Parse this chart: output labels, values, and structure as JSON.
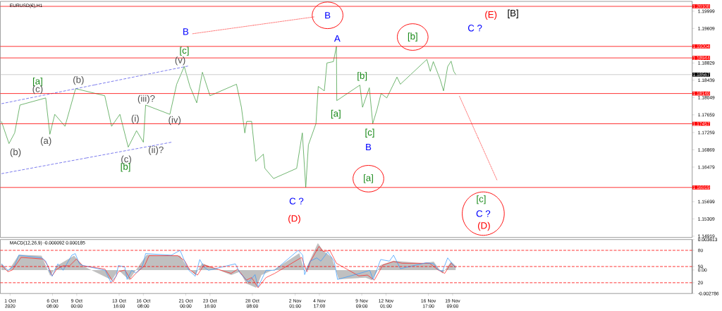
{
  "chart_data": [
    {
      "type": "line",
      "title": "EURUSD(€),H1",
      "xlim": [
        "2020-09-30T14:00",
        "2020-12-15T18:00"
      ],
      "ylim": [
        1.1489,
        1.2022
      ],
      "yticks": [
        1.14919,
        1.15309,
        1.15699,
        1.16479,
        1.16869,
        1.17259,
        1.17659,
        1.18049,
        1.18439,
        1.18829,
        1.19609,
        1.19999
      ],
      "tick_labels": "y",
      "series": [
        {
          "color": "#3c9a3c",
          "x": [
            "2020-09-30T17:00",
            "2020-10-01T13:00",
            "2020-10-02T04:00",
            "2020-10-02T18:00",
            "2020-10-05T14:00",
            "2020-10-06T01:00",
            "2020-10-06T14:00",
            "2020-10-07T17:00",
            "2020-10-08T21:00",
            "2020-10-12T02:00",
            "2020-10-12T20:00",
            "2020-10-13T18:00",
            "2020-10-14T16:00",
            "2020-10-15T14:00",
            "2020-10-16T08:00",
            "2020-10-16T14:00",
            "2020-10-19T06:00",
            "2020-10-20T00:00",
            "2020-10-20T20:00",
            "2020-10-21T11:00",
            "2020-10-22T05:00",
            "2020-10-22T20:00",
            "2020-10-23T16:00",
            "2020-10-26T14:00",
            "2020-10-27T03:00",
            "2020-10-27T12:00",
            "2020-10-27T17:00",
            "2020-10-28T06:00",
            "2020-10-28T17:00",
            "2020-10-29T13:00",
            "2020-10-29T17:00",
            "2020-10-30T16:00",
            "2020-11-02T05:00",
            "2020-11-02T20:00",
            "2020-11-03T05:00",
            "2020-11-03T12:00",
            "2020-11-04T08:00",
            "2020-11-04T14:00",
            "2020-11-05T06:00",
            "2020-11-05T13:00",
            "2020-11-06T06:00",
            "2020-11-06T14:00",
            "2020-11-06T15:00",
            "2020-11-09T04:00",
            "2020-11-09T11:00",
            "2020-11-10T05:00",
            "2020-11-10T14:00",
            "2020-11-11T01:00",
            "2020-11-11T12:00",
            "2020-11-12T03:00",
            "2020-11-13T06:00",
            "2020-11-13T15:00",
            "2020-11-16T13:00",
            "2020-11-16T22:00",
            "2020-11-17T06:00",
            "2020-11-18T00:00",
            "2020-11-18T09:00",
            "2020-11-18T20:00",
            "2020-11-19T05:00",
            "2020-11-19T12:00",
            "2020-11-19T18:00"
          ],
          "values": [
            1.1751,
            1.1701,
            1.1725,
            1.1788,
            1.1804,
            1.1722,
            1.1767,
            1.174,
            1.1825,
            1.1809,
            1.174,
            1.1767,
            1.1693,
            1.173,
            1.1704,
            1.1788,
            1.1767,
            1.1835,
            1.1875,
            1.183,
            1.1793,
            1.1862,
            1.1809,
            1.1835,
            1.1783,
            1.1725,
            1.1751,
            1.1751,
            1.1661,
            1.1677,
            1.1645,
            1.1622,
            1.1645,
            1.1725,
            1.1602,
            1.1698,
            1.1746,
            1.183,
            1.182,
            1.1883,
            1.1886,
            1.192,
            1.1798,
            1.1833,
            1.1783,
            1.1827,
            1.1746,
            1.1777,
            1.1814,
            1.1804,
            1.1851,
            1.1835,
            1.1891,
            1.1864,
            1.1886,
            1.1846,
            1.182,
            1.1875,
            1.1887,
            1.1864,
            1.1856
          ]
        },
        {
          "color": "#4a4ae6",
          "line_style": "dashed",
          "x": [
            "2020-09-30T17:00",
            "2020-10-21T06:00"
          ],
          "values": [
            1.1791,
            1.1876
          ]
        },
        {
          "color": "#4a4ae6",
          "line_style": "dashed",
          "x": [
            "2020-09-30T17:00",
            "2020-10-19T10:00"
          ],
          "values": [
            1.1633,
            1.1704
          ]
        },
        {
          "color": "#ff5050",
          "line_style": "dotted",
          "x": [
            "2020-10-21T18:00",
            "2020-11-04T03:00"
          ],
          "values": [
            1.1949,
            1.1987
          ]
        },
        {
          "color": "#ff5050",
          "line_style": "dotted",
          "x": [
            "2020-11-20T03:00",
            "2020-11-24T06:00"
          ],
          "values": [
            1.1808,
            1.1619
          ]
        }
      ],
      "ref_lines": [
        {
          "axis": "y",
          "value": 1.20108,
          "label": "1.20108",
          "color": "#ff0000"
        },
        {
          "axis": "y",
          "value": 1.19204,
          "label": "1.19204",
          "color": "#ff0000"
        },
        {
          "axis": "y",
          "value": 1.18944,
          "label": "1.18944",
          "color": "#ff0000"
        },
        {
          "axis": "y",
          "value": 1.18567,
          "label": "1.18567",
          "color": "#c0c0c0"
        },
        {
          "axis": "y",
          "value": 1.1814,
          "label": "1.18140",
          "color": "#ff0000"
        },
        {
          "axis": "y",
          "value": 1.17457,
          "label": "1.17457",
          "color": "#ff0000"
        },
        {
          "axis": "y",
          "value": 1.16019,
          "label": "1.16019",
          "color": "#ff0000"
        }
      ],
      "annotations": [
        "[a]",
        "(c)",
        "(b)",
        "(a)",
        "(b)",
        "(iii)?",
        "(i)",
        "(iv)",
        "(ii)?",
        "(c)",
        "[b]",
        "(v)",
        "[c]",
        "B",
        "B",
        "A",
        "[b]",
        "[a]",
        "[c]",
        "B",
        "[a]",
        "C ?",
        "(D)",
        "[b]",
        "C ?",
        "(E)",
        "[B]",
        "[c]",
        "C ?",
        "(D)"
      ]
    },
    {
      "type": "line",
      "title": "MACD(12,26,9) -0.000092 0.000185",
      "xlim": [
        "2020-09-30T14:00",
        "2020-12-15T18:00"
      ],
      "xticks": [
        {
          "value": "2020-10-01T16:00",
          "label": "1 Oct 2020"
        },
        {
          "value": "2020-10-06T08:00",
          "label": "6 Oct 08:00"
        },
        {
          "value": "2020-10-09T00:00",
          "label": "9 Oct 00:00"
        },
        {
          "value": "2020-10-13T16:00",
          "label": "13 Oct 16:00"
        },
        {
          "value": "2020-10-16T08:00",
          "label": "16 Oct 08:00"
        },
        {
          "value": "2020-10-21T00:00",
          "label": "21 Oct 00:00"
        },
        {
          "value": "2020-10-23T16:00",
          "label": "23 Oct 16:00"
        },
        {
          "value": "2020-10-28T08:00",
          "label": "28 Oct 08:00"
        },
        {
          "value": "2020-11-02T01:00",
          "label": "2 Nov 01:00"
        },
        {
          "value": "2020-11-04T17:00",
          "label": "4 Nov 17:00"
        },
        {
          "value": "2020-11-09T09:00",
          "label": "9 Nov 09:00"
        },
        {
          "value": "2020-11-12T01:00",
          "label": "12 Nov 01:00"
        },
        {
          "value": "2020-11-16T17:00",
          "label": "16 Nov 17:00"
        },
        {
          "value": "2020-11-19T09:00",
          "label": "19 Nov 09:00"
        }
      ],
      "ylim": [
        0,
        100
      ],
      "yticks": [
        20,
        50,
        80
      ],
      "y2lim": [
        -0.002786,
        0.003613
      ],
      "y2ticks": [
        -0.002786,
        {
          "value": 0,
          "label": "0.00"
        },
        0.003613
      ],
      "ref_lines": [
        {
          "axis": "y",
          "value": 80,
          "color": "#ff0000",
          "line_style": "dashed"
        },
        {
          "axis": "y",
          "value": 50,
          "color": "#ff0000",
          "line_style": "dashed"
        },
        {
          "axis": "y",
          "value": 20,
          "color": "#ff0000",
          "line_style": "dashed"
        }
      ],
      "series": [
        {
          "type": "area",
          "axis": "y2",
          "color": "#c0c0c0",
          "x": [
            "2020-09-30T17:00",
            "2020-10-01T10:00",
            "2020-10-02T15:00",
            "2020-10-05T03:00",
            "2020-10-06T02:00",
            "2020-10-06T19:00",
            "2020-10-08T17:00",
            "2020-10-09T16:00",
            "2020-10-12T21:00",
            "2020-10-13T14:00",
            "2020-10-14T19:00",
            "2020-10-15T12:00",
            "2020-10-16T17:00",
            "2020-10-20T09:00",
            "2020-10-21T02:00",
            "2020-10-22T01:00",
            "2020-10-22T19:00",
            "2020-10-26T00:00",
            "2020-10-26T23:00",
            "2020-10-27T16:00",
            "2020-10-28T18:00",
            "2020-10-29T08:00",
            "2020-10-30T19:00",
            "2020-11-02T12:00",
            "2020-11-03T02:00",
            "2020-11-04T13:00",
            "2020-11-05T03:00",
            "2020-11-06T02:00",
            "2020-11-06T20:00",
            "2020-11-09T19:00",
            "2020-11-10T12:00",
            "2020-11-11T11:00",
            "2020-11-12T21:00",
            "2020-11-16T02:00",
            "2020-11-17T07:00",
            "2020-11-18T06:00",
            "2020-11-19T05:00",
            "2020-11-19T17:00"
          ],
          "values": [
            0.0008,
            -0.0002,
            0.0018,
            0.0017,
            -0.0007,
            0.0005,
            0.0017,
            0.0005,
            -0.0012,
            0,
            -0.0012,
            0,
            0.0018,
            0.0017,
            0.0005,
            -0.0006,
            0.0008,
            -0.0006,
            -0.0002,
            -0.0016,
            -0.0021,
            -0.0006,
            0.0001,
            0.002,
            -0.0002,
            0.0032,
            0.0023,
            0.0015,
            -0.0011,
            -0.0009,
            -0.0012,
            0.0006,
            0.0011,
            0.0008,
            0.001,
            -0.0004,
            0.001,
            0.0005
          ]
        },
        {
          "axis": "y",
          "color": "#3399ff",
          "x": [
            "2020-09-30T17:00",
            "2020-10-01T10:00",
            "2020-10-02T04:00",
            "2020-10-02T15:00",
            "2020-10-05T03:00",
            "2020-10-05T14:00",
            "2020-10-05T23:00",
            "2020-10-06T07:00",
            "2020-10-06T22:00",
            "2020-10-07T12:00",
            "2020-10-08T11:00",
            "2020-10-08T20:00",
            "2020-10-09T07:00",
            "2020-10-09T16:00",
            "2020-10-12T03:00",
            "2020-10-12T18:00",
            "2020-10-13T08:00",
            "2020-10-13T14:00",
            "2020-10-14T07:00",
            "2020-10-14T13:00",
            "2020-10-15T01:00",
            "2020-10-15T12:00",
            "2020-10-16T05:00",
            "2020-10-16T14:00",
            "2020-10-19T10:00",
            "2020-10-20T09:00",
            "2020-10-20T21:00",
            "2020-10-21T08:00",
            "2020-10-22T01:00",
            "2020-10-22T13:00",
            "2020-10-23T00:00",
            "2020-10-23T12:00",
            "2020-10-26T11:00",
            "2020-10-26T23:00",
            "2020-10-27T22:00",
            "2020-10-28T15:00",
            "2020-10-28T23:00",
            "2020-10-29T20:00",
            "2020-10-30T19:00",
            "2020-11-02T09:00",
            "2020-11-02T21:00",
            "2020-11-03T02:00",
            "2020-11-03T17:00",
            "2020-11-04T10:00",
            "2020-11-04T21:00",
            "2020-11-05T15:00",
            "2020-11-06T08:00",
            "2020-11-06T17:00",
            "2020-11-09T07:00",
            "2020-11-10T06:00",
            "2020-11-10T15:00",
            "2020-11-11T11:00",
            "2020-11-12T10:00",
            "2020-11-12T21:00",
            "2020-11-13T15:00",
            "2020-11-16T11:00",
            "2020-11-17T07:00",
            "2020-11-17T19:00",
            "2020-11-18T06:00",
            "2020-11-18T20:00",
            "2020-11-19T08:00",
            "2020-11-19T17:00"
          ],
          "values": [
            55,
            43,
            52,
            71,
            66,
            60,
            43,
            32,
            55,
            43,
            71,
            74,
            55,
            52,
            43,
            21,
            32,
            52,
            49,
            26,
            43,
            38,
            49,
            74,
            71,
            80,
            60,
            43,
            32,
            63,
            49,
            43,
            55,
            38,
            21,
            35,
            12,
            43,
            43,
            80,
            71,
            35,
            60,
            66,
            60,
            77,
            60,
            26,
            38,
            43,
            26,
            63,
            60,
            71,
            46,
            57,
            55,
            44,
            41,
            66,
            55,
            48
          ]
        },
        {
          "axis": "y2",
          "color": "#ff2020",
          "x": [
            "2020-09-30T17:00",
            "2020-10-01T10:00",
            "2020-10-01T22:00",
            "2020-10-02T21:00",
            "2020-10-05T08:00",
            "2020-10-05T20:00",
            "2020-10-06T07:00",
            "2020-10-06T19:00",
            "2020-10-07T12:00",
            "2020-10-08T05:00",
            "2020-10-08T23:00",
            "2020-10-09T16:00",
            "2020-10-12T03:00",
            "2020-10-13T00:00",
            "2020-10-13T14:00",
            "2020-10-14T07:00",
            "2020-10-14T22:00",
            "2020-10-15T12:00",
            "2020-10-16T11:00",
            "2020-10-16T23:00",
            "2020-10-20T03:00",
            "2020-10-20T21:00",
            "2020-10-21T11:00",
            "2020-10-22T07:00",
            "2020-10-23T00:00",
            "2020-10-26T00:00",
            "2020-10-26T17:00",
            "2020-10-27T16:00",
            "2020-10-28T06:00",
            "2020-10-28T23:00",
            "2020-10-29T20:00",
            "2020-10-30T19:00",
            "2020-11-02T18:00",
            "2020-11-03T08:00",
            "2020-11-03T17:00",
            "2020-11-04T16:00",
            "2020-11-05T03:00",
            "2020-11-05T21:00",
            "2020-11-06T14:00",
            "2020-11-09T01:00",
            "2020-11-10T00:00",
            "2020-11-10T18:00",
            "2020-11-11T17:00",
            "2020-11-12T21:00",
            "2020-11-13T20:00",
            "2020-11-16T20:00",
            "2020-11-17T19:00",
            "2020-11-18T12:00",
            "2020-11-19T05:00",
            "2020-11-19T17:00"
          ],
          "values": [
            0.0006,
            -0.0002,
            0,
            0.0015,
            0.0013,
            0.0005,
            -0.0007,
            0.0001,
            0.0005,
            0.0005,
            0.0013,
            0.0005,
            0.0001,
            -0.0014,
            -0.0002,
            0,
            -0.0011,
            -0.0004,
            0.0005,
            0.0017,
            0.0017,
            0.0011,
            0,
            -0.0006,
            0.0006,
            -0.0004,
            0.0001,
            -0.0012,
            -0.0009,
            -0.0021,
            -0.0009,
            -0.0004,
            0.0015,
            -0.0002,
            0.001,
            0.0028,
            0.0022,
            0.0023,
            0.0008,
            -0.0007,
            -0.0006,
            -0.0012,
            0.0006,
            0.001,
            0.0008,
            0.0008,
            0,
            -0.0004,
            0.0008,
            0.0003
          ]
        }
      ]
    }
  ]
}
